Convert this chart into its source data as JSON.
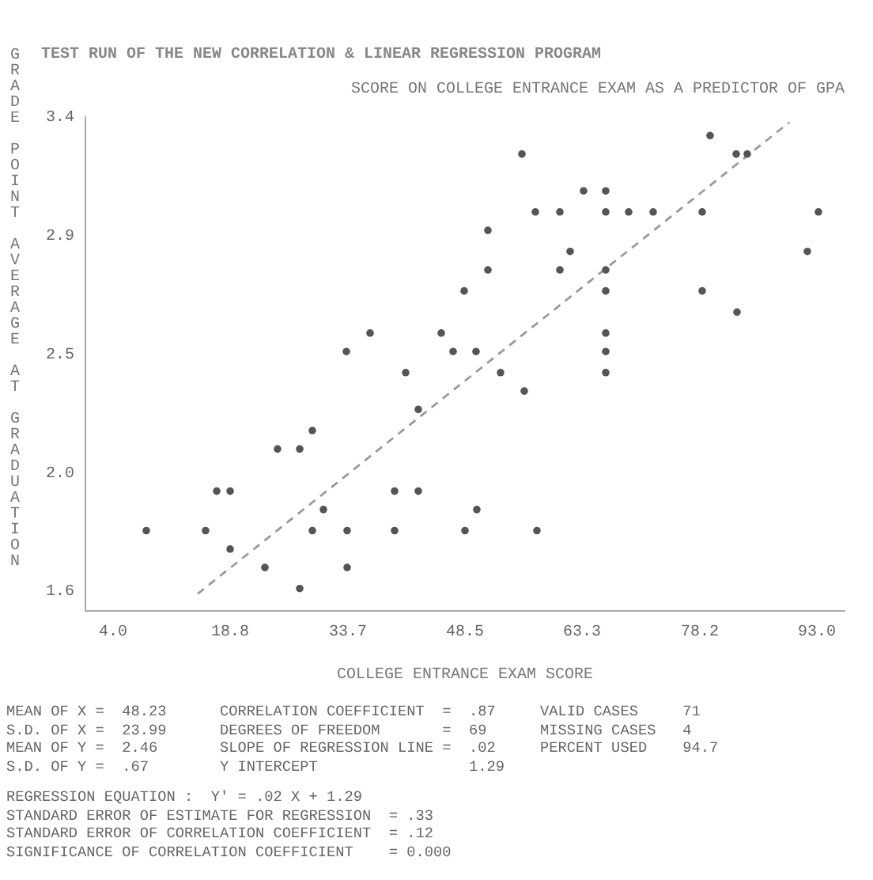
{
  "chart_data": {
    "type": "scatter",
    "title": "TEST RUN OF THE NEW CORRELATION & LINEAR REGRESSION PROGRAM",
    "subtitle": "SCORE ON COLLEGE ENTRANCE EXAM AS A PREDICTOR OF GPA",
    "xlabel": "COLLEGE ENTRANCE EXAM SCORE",
    "ylabel": "GRADE POINT AVERAGE AT GRADUATION",
    "xlim": [
      0.5,
      96.5
    ],
    "xticks": [
      {
        "value": 4,
        "label": "4.0"
      },
      18.8,
      33.7,
      48.5,
      63.3,
      78.2,
      {
        "value": 93,
        "label": "93.0"
      }
    ],
    "ylim": [
      1.525,
      3.4
    ],
    "yticks": [
      1.6,
      {
        "value": 2.05,
        "label": "2.0"
      },
      2.5,
      {
        "value": 2.95,
        "label": "2.9"
      },
      3.4
    ],
    "marker": "circle",
    "series": [
      {
        "color": "#555555",
        "x": [
          79.5,
          55.7,
          82.8,
          84.2,
          63.5,
          66.3,
          57.4,
          60.5,
          66.3,
          69.2,
          72.3,
          78.5,
          93.2,
          51.4,
          61.8,
          91.8,
          51.4,
          60.5,
          66.3,
          48.4,
          66.3,
          78.5,
          82.9,
          36.5,
          45.5,
          66.3,
          33.5,
          47.0,
          49.9,
          66.3,
          41.0,
          53.0,
          66.3,
          56.0,
          42.6,
          29.2,
          24.8,
          27.6,
          17.1,
          18.8,
          39.6,
          42.6,
          30.6,
          50.0,
          8.2,
          15.7,
          29.2,
          33.6,
          39.6,
          48.5,
          57.6,
          18.8,
          23.2,
          33.6,
          27.6
        ],
        "values": [
          3.33,
          3.26,
          3.26,
          3.26,
          3.12,
          3.12,
          3.04,
          3.04,
          3.04,
          3.04,
          3.04,
          3.04,
          3.04,
          2.97,
          2.89,
          2.89,
          2.82,
          2.82,
          2.82,
          2.74,
          2.74,
          2.74,
          2.66,
          2.58,
          2.58,
          2.58,
          2.51,
          2.51,
          2.51,
          2.51,
          2.43,
          2.43,
          2.43,
          2.36,
          2.29,
          2.21,
          2.14,
          2.14,
          1.98,
          1.98,
          1.98,
          1.98,
          1.91,
          1.91,
          1.83,
          1.83,
          1.83,
          1.83,
          1.83,
          1.83,
          1.83,
          1.76,
          1.69,
          1.69,
          1.61
        ]
      },
      {
        "type": "line",
        "color": "#9a9a9a",
        "line_style": "dashed",
        "marker": "none",
        "x": [
          14.7,
          89.5
        ],
        "values": [
          1.59,
          3.38
        ]
      }
    ],
    "annotations": [
      "MEAN OF X =  48.23      CORRELATION COEFFICIENT  =  .87     VALID CASES     71",
      "S.D. OF X =  23.99      DEGREES OF FREEDOM       =  69      MISSING CASES   4",
      "MEAN OF Y =  2.46       SLOPE OF REGRESSION LINE =  .02     PERCENT USED    94.7",
      "S.D. OF Y =  .67        Y INTERCEPT                 1.29",
      "REGRESSION EQUATION :  Y' = .02 X + 1.29",
      "STANDARD ERROR OF ESTIMATE FOR REGRESSION  = .33",
      "STANDARD ERROR OF CORRELATION COEFFICIENT  = .12",
      "SIGNIFICANCE OF CORRELATION COEFFICIENT    = 0.000"
    ]
  }
}
